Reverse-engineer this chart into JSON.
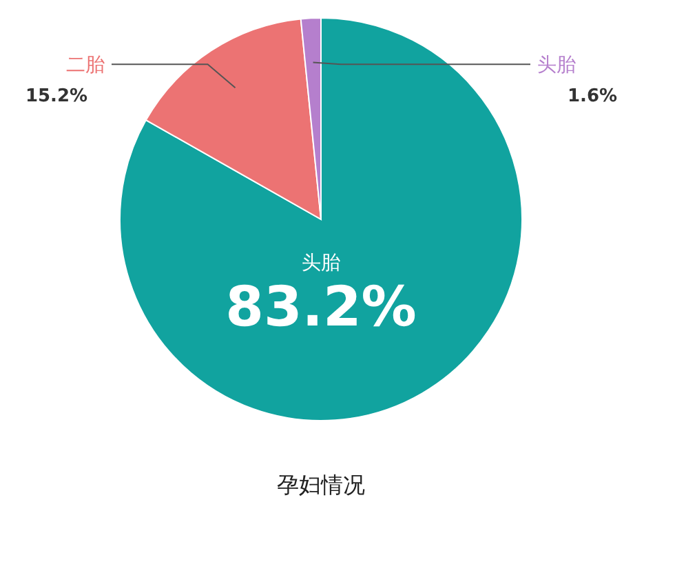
{
  "chart_data": {
    "type": "pie",
    "title": "孕妇情况",
    "categories": [
      "头胎",
      "二胎",
      "头胎"
    ],
    "values": [
      83.2,
      15.2,
      1.6
    ],
    "colors": [
      "#11a39f",
      "#ec7373",
      "#b57fcd"
    ],
    "value_labels": [
      "83.2%",
      "15.2%",
      "1.6%"
    ]
  }
}
